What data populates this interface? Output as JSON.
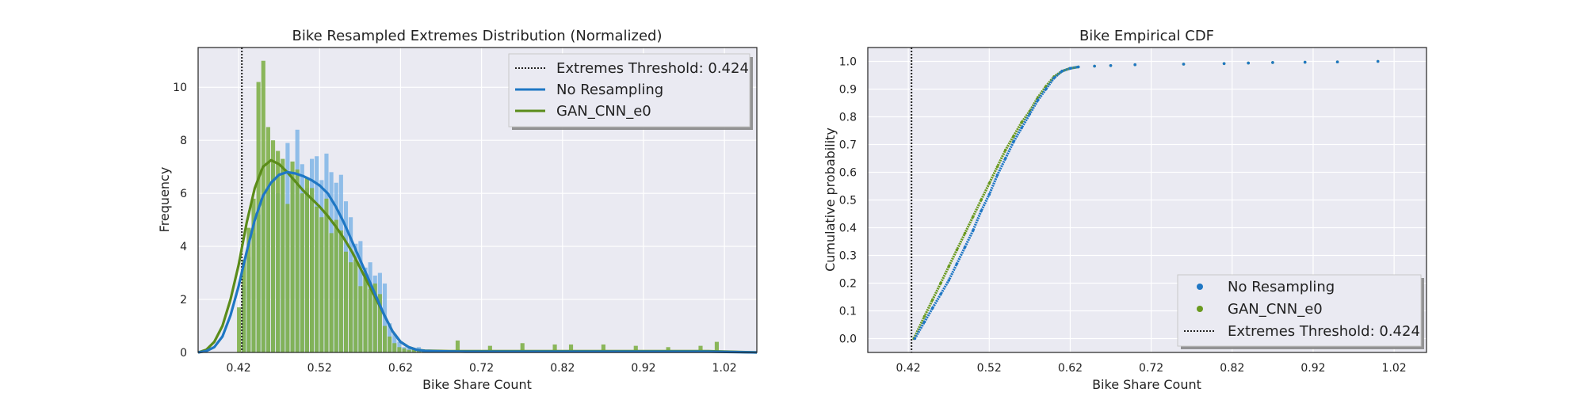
{
  "chart_data": [
    {
      "type": "histogram+kde",
      "title": "Bike Resampled Extremes Distribution (Normalized)",
      "xlabel": "Bike Share Count",
      "ylabel": "Frequency",
      "xlim": [
        0.37,
        1.06
      ],
      "ylim": [
        0,
        11.5
      ],
      "xticks": [
        "0.42",
        "0.52",
        "0.62",
        "0.72",
        "0.82",
        "0.92",
        "1.02"
      ],
      "xtick_values": [
        0.42,
        0.52,
        0.62,
        0.72,
        0.82,
        0.92,
        1.02
      ],
      "yticks": [
        "0",
        "2",
        "4",
        "6",
        "8",
        "10"
      ],
      "ytick_values": [
        0,
        2,
        4,
        6,
        8,
        10
      ],
      "grid": true,
      "legend_position": "top-right",
      "threshold": {
        "label": "Extremes Threshold: 0.424",
        "value": 0.424
      },
      "legend": [
        "Extremes Threshold: 0.424",
        "No Resampling",
        "GAN_CNN_e0"
      ],
      "colors": {
        "no_resampling": "#1f77c4",
        "gan": "#5b8c1a",
        "hist_blue": "#7fb5e6",
        "hist_green": "#7fb049",
        "threshold": "#222222"
      },
      "bin_width": 0.006,
      "series": [
        {
          "name": "No Resampling",
          "bins_x": [
            0.427,
            0.433,
            0.439,
            0.445,
            0.451,
            0.457,
            0.463,
            0.469,
            0.475,
            0.481,
            0.487,
            0.493,
            0.499,
            0.505,
            0.511,
            0.517,
            0.523,
            0.529,
            0.535,
            0.541,
            0.547,
            0.553,
            0.559,
            0.565,
            0.571,
            0.577,
            0.583,
            0.589,
            0.595,
            0.601,
            0.607,
            0.613,
            0.619,
            0.625,
            0.631,
            0.637,
            0.643,
            0.649,
            0.655,
            0.661,
            0.667,
            0.673
          ],
          "bins_y": [
            2.5,
            3.6,
            4.5,
            5.2,
            5.9,
            6.2,
            7.1,
            6.0,
            7.0,
            7.9,
            6.6,
            8.4,
            7.1,
            6.2,
            7.3,
            7.4,
            6.5,
            7.5,
            6.8,
            6.4,
            6.7,
            5.7,
            5.1,
            4.1,
            4.2,
            3.2,
            3.4,
            2.9,
            3.0,
            2.6,
            1.1,
            0.7,
            0.4,
            0.2,
            0.15,
            0.1,
            0.2,
            0.1,
            0.05,
            0.1,
            0.05,
            0.05
          ],
          "kde_x": [
            0.37,
            0.38,
            0.39,
            0.4,
            0.41,
            0.42,
            0.43,
            0.44,
            0.45,
            0.46,
            0.47,
            0.48,
            0.49,
            0.5,
            0.51,
            0.52,
            0.53,
            0.54,
            0.55,
            0.56,
            0.57,
            0.58,
            0.59,
            0.6,
            0.61,
            0.62,
            0.63,
            0.64,
            0.65,
            0.66,
            0.68,
            0.7,
            0.72,
            0.75,
            0.8,
            0.85,
            0.9,
            0.95,
            1.0,
            1.06
          ],
          "kde_y": [
            0.0,
            0.05,
            0.2,
            0.6,
            1.4,
            2.5,
            3.8,
            5.0,
            5.9,
            6.4,
            6.7,
            6.8,
            6.75,
            6.65,
            6.5,
            6.3,
            6.0,
            5.5,
            4.9,
            4.2,
            3.5,
            2.8,
            2.1,
            1.4,
            0.8,
            0.4,
            0.2,
            0.1,
            0.06,
            0.05,
            0.04,
            0.03,
            0.03,
            0.03,
            0.03,
            0.03,
            0.03,
            0.03,
            0.03,
            0.0
          ]
        },
        {
          "name": "GAN_CNN_e0",
          "bins_x": [
            0.421,
            0.427,
            0.433,
            0.439,
            0.445,
            0.451,
            0.457,
            0.463,
            0.469,
            0.475,
            0.481,
            0.487,
            0.493,
            0.499,
            0.505,
            0.511,
            0.517,
            0.523,
            0.529,
            0.535,
            0.541,
            0.547,
            0.553,
            0.559,
            0.565,
            0.571,
            0.577,
            0.583,
            0.589,
            0.595,
            0.601,
            0.607,
            0.613,
            0.619,
            0.625,
            0.631,
            0.637,
            0.643,
            0.649,
            0.655,
            0.661,
            0.667,
            0.673,
            0.691,
            0.731,
            0.771,
            0.811,
            0.831,
            0.871,
            0.911,
            0.951,
            0.991,
            1.011
          ],
          "bins_y": [
            1.7,
            3.5,
            4.7,
            5.8,
            10.2,
            11.0,
            8.5,
            8.0,
            7.6,
            7.3,
            5.6,
            7.2,
            6.9,
            6.0,
            6.6,
            6.2,
            5.5,
            5.1,
            5.8,
            4.5,
            5.0,
            4.6,
            3.8,
            3.4,
            3.5,
            2.5,
            3.0,
            2.4,
            2.6,
            2.2,
            1.0,
            0.6,
            0.35,
            0.2,
            0.15,
            0.1,
            0.15,
            0.1,
            0.05,
            0.1,
            0.05,
            0.05,
            0.05,
            0.45,
            0.25,
            0.35,
            0.3,
            0.3,
            0.3,
            0.25,
            0.2,
            0.25,
            0.4
          ],
          "kde_x": [
            0.37,
            0.38,
            0.39,
            0.4,
            0.41,
            0.42,
            0.43,
            0.44,
            0.45,
            0.46,
            0.47,
            0.48,
            0.49,
            0.5,
            0.51,
            0.52,
            0.53,
            0.54,
            0.55,
            0.56,
            0.57,
            0.58,
            0.59,
            0.6,
            0.61,
            0.62,
            0.63,
            0.64,
            0.65,
            0.66,
            0.68,
            0.7,
            0.72,
            0.75,
            0.8,
            0.85,
            0.9,
            0.95,
            1.0,
            1.06
          ],
          "kde_y": [
            0.0,
            0.1,
            0.4,
            1.0,
            2.0,
            3.3,
            4.9,
            6.2,
            7.0,
            7.25,
            7.1,
            6.8,
            6.45,
            6.1,
            5.8,
            5.5,
            5.15,
            4.75,
            4.3,
            3.8,
            3.2,
            2.6,
            2.0,
            1.4,
            0.8,
            0.4,
            0.2,
            0.1,
            0.07,
            0.06,
            0.05,
            0.05,
            0.05,
            0.05,
            0.05,
            0.05,
            0.05,
            0.05,
            0.05,
            0.0
          ]
        }
      ]
    },
    {
      "type": "scatter",
      "title": "Bike Empirical CDF",
      "xlabel": "Bike Share Count",
      "ylabel": "Cumulative probability",
      "xlim": [
        0.37,
        1.06
      ],
      "ylim": [
        -0.05,
        1.05
      ],
      "xticks": [
        "0.42",
        "0.52",
        "0.62",
        "0.72",
        "0.82",
        "0.92",
        "1.02"
      ],
      "xtick_values": [
        0.42,
        0.52,
        0.62,
        0.72,
        0.82,
        0.92,
        1.02
      ],
      "yticks": [
        "0.0",
        "0.1",
        "0.2",
        "0.3",
        "0.4",
        "0.5",
        "0.6",
        "0.7",
        "0.8",
        "0.9",
        "1.0"
      ],
      "ytick_values": [
        0.0,
        0.1,
        0.2,
        0.3,
        0.4,
        0.5,
        0.6,
        0.7,
        0.8,
        0.9,
        1.0
      ],
      "grid": true,
      "legend_position": "bottom-right",
      "threshold": {
        "label": "Extremes Threshold: 0.424",
        "value": 0.424
      },
      "legend": [
        "No Resampling",
        "GAN_CNN_e0",
        "Extremes Threshold: 0.424"
      ],
      "colors": {
        "no_resampling": "#1f77c4",
        "gan": "#6a9a1f",
        "threshold": "#222222"
      },
      "series": [
        {
          "name": "No Resampling",
          "x": [
            0.428,
            0.44,
            0.45,
            0.46,
            0.47,
            0.48,
            0.49,
            0.5,
            0.51,
            0.52,
            0.53,
            0.54,
            0.55,
            0.56,
            0.57,
            0.58,
            0.59,
            0.6,
            0.61,
            0.62,
            0.63,
            0.65,
            0.67,
            0.7,
            0.76,
            0.81,
            0.84,
            0.87,
            0.91,
            0.95,
            1.0
          ],
          "y": [
            0.0,
            0.06,
            0.11,
            0.16,
            0.21,
            0.27,
            0.33,
            0.39,
            0.46,
            0.52,
            0.59,
            0.65,
            0.71,
            0.76,
            0.81,
            0.86,
            0.9,
            0.94,
            0.965,
            0.975,
            0.98,
            0.983,
            0.985,
            0.988,
            0.99,
            0.992,
            0.994,
            0.996,
            0.997,
            0.998,
            1.0
          ]
        },
        {
          "name": "GAN_CNN_e0",
          "x": [
            0.427,
            0.44,
            0.45,
            0.46,
            0.47,
            0.48,
            0.49,
            0.5,
            0.51,
            0.52,
            0.53,
            0.54,
            0.55,
            0.56,
            0.57,
            0.58,
            0.59,
            0.6,
            0.61,
            0.62,
            0.63,
            0.65,
            0.67,
            0.7,
            0.76,
            0.81,
            0.84,
            0.87,
            0.91,
            0.95,
            1.0
          ],
          "y": [
            0.0,
            0.08,
            0.14,
            0.2,
            0.26,
            0.32,
            0.38,
            0.44,
            0.5,
            0.56,
            0.62,
            0.68,
            0.73,
            0.78,
            0.82,
            0.87,
            0.91,
            0.945,
            0.965,
            0.975,
            0.98,
            0.983,
            0.985,
            0.988,
            0.99,
            0.992,
            0.994,
            0.996,
            0.997,
            0.998,
            1.0
          ]
        }
      ]
    }
  ]
}
